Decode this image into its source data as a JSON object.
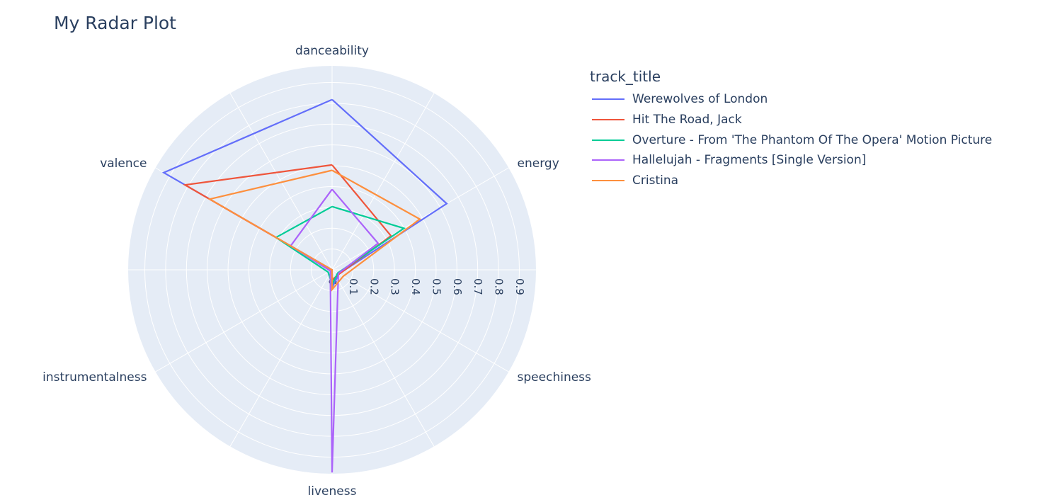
{
  "title": "My Radar Plot",
  "legend": {
    "title": "track_title"
  },
  "chart_data": {
    "type": "radar",
    "title": "My Radar Plot",
    "axes": [
      "danceability",
      "energy",
      "speechiness",
      "liveness",
      "instrumentalness",
      "valence"
    ],
    "radial_ticks": [
      "0",
      "0.1",
      "0.2",
      "0.3",
      "0.4",
      "0.5",
      "0.6",
      "0.7",
      "0.8",
      "0.9"
    ],
    "radial_range": [
      0,
      0.98
    ],
    "legend_title": "track_title",
    "legend_position": "top-right",
    "grid": true,
    "series": [
      {
        "name": "Werewolves of London",
        "color": "#636efa",
        "values": [
          0.818,
          0.636,
          0.038,
          0.085,
          0.0,
          0.934
        ]
      },
      {
        "name": "Hit The Road, Jack",
        "color": "#ef553b",
        "values": [
          0.504,
          0.327,
          0.04,
          0.048,
          0.001,
          0.816
        ]
      },
      {
        "name": "Overture - From 'The Phantom Of The Opera' Motion Picture",
        "color": "#00cc96",
        "values": [
          0.304,
          0.399,
          0.031,
          0.07,
          0.022,
          0.311
        ]
      },
      {
        "name": "Hallelujah - Fragments [Single Version]",
        "color": "#ab63fa",
        "values": [
          0.387,
          0.255,
          0.035,
          0.974,
          0.01,
          0.23
        ]
      },
      {
        "name": "Cristina",
        "color": "#fd8f3d",
        "values": [
          0.478,
          0.487,
          0.062,
          0.095,
          0.0,
          0.679
        ]
      }
    ]
  }
}
